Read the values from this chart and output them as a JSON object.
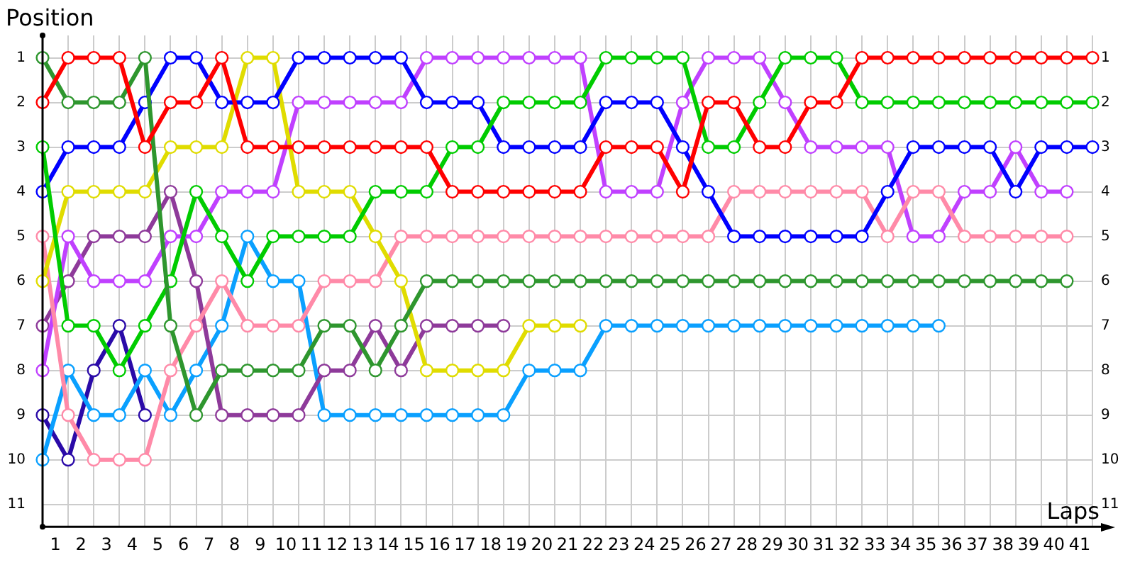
{
  "chart_data": {
    "type": "line",
    "xlabel": "Laps",
    "ylabel": "Position",
    "marker": "circle",
    "grid": true,
    "x": [
      0,
      1,
      2,
      3,
      4,
      5,
      6,
      7,
      8,
      9,
      10,
      11,
      12,
      13,
      14,
      15,
      16,
      17,
      18,
      19,
      20,
      21,
      22,
      23,
      24,
      25,
      26,
      27,
      28,
      29,
      30,
      31,
      32,
      33,
      34,
      35,
      36,
      37,
      38,
      39,
      40,
      41
    ],
    "xlim": [
      0,
      41
    ],
    "xticks": [
      {
        "value": 0,
        "label": null
      },
      {
        "value": 0.5,
        "label": "1"
      },
      {
        "value": 1,
        "label": null
      },
      {
        "value": 1.5,
        "label": "2"
      },
      {
        "value": 2,
        "label": null
      },
      {
        "value": 2.5,
        "label": "3"
      },
      {
        "value": 3,
        "label": null
      },
      {
        "value": 3.5,
        "label": "4"
      },
      {
        "value": 4,
        "label": null
      },
      {
        "value": 4.5,
        "label": "5"
      },
      {
        "value": 5,
        "label": null
      },
      {
        "value": 5.5,
        "label": "6"
      },
      {
        "value": 6,
        "label": null
      },
      {
        "value": 6.5,
        "label": "7"
      },
      {
        "value": 7,
        "label": null
      },
      {
        "value": 7.5,
        "label": "8"
      },
      {
        "value": 8,
        "label": null
      },
      {
        "value": 8.5,
        "label": "9"
      },
      {
        "value": 9,
        "label": null
      },
      {
        "value": 9.5,
        "label": "10"
      },
      {
        "value": 10,
        "label": null
      },
      {
        "value": 10.5,
        "label": "11"
      },
      {
        "value": 11,
        "label": null
      },
      {
        "value": 11.5,
        "label": "12"
      },
      {
        "value": 12,
        "label": null
      },
      {
        "value": 12.5,
        "label": "13"
      },
      {
        "value": 13,
        "label": null
      },
      {
        "value": 13.5,
        "label": "14"
      },
      {
        "value": 14,
        "label": null
      },
      {
        "value": 14.5,
        "label": "15"
      },
      {
        "value": 15,
        "label": null
      },
      {
        "value": 15.5,
        "label": "16"
      },
      {
        "value": 16,
        "label": null
      },
      {
        "value": 16.5,
        "label": "17"
      },
      {
        "value": 17,
        "label": null
      },
      {
        "value": 17.5,
        "label": "18"
      },
      {
        "value": 18,
        "label": null
      },
      {
        "value": 18.5,
        "label": "19"
      },
      {
        "value": 19,
        "label": null
      },
      {
        "value": 19.5,
        "label": "20"
      },
      {
        "value": 20,
        "label": null
      },
      {
        "value": 20.5,
        "label": "21"
      },
      {
        "value": 21,
        "label": null
      },
      {
        "value": 21.5,
        "label": "22"
      },
      {
        "value": 22,
        "label": null
      },
      {
        "value": 22.5,
        "label": "23"
      },
      {
        "value": 23,
        "label": null
      },
      {
        "value": 23.5,
        "label": "24"
      },
      {
        "value": 24,
        "label": null
      },
      {
        "value": 24.5,
        "label": "25"
      },
      {
        "value": 25,
        "label": null
      },
      {
        "value": 25.5,
        "label": "26"
      },
      {
        "value": 26,
        "label": null
      },
      {
        "value": 26.5,
        "label": "27"
      },
      {
        "value": 27,
        "label": null
      },
      {
        "value": 27.5,
        "label": "28"
      },
      {
        "value": 28,
        "label": null
      },
      {
        "value": 28.5,
        "label": "29"
      },
      {
        "value": 29,
        "label": null
      },
      {
        "value": 29.5,
        "label": "30"
      },
      {
        "value": 30,
        "label": null
      },
      {
        "value": 30.5,
        "label": "31"
      },
      {
        "value": 31,
        "label": null
      },
      {
        "value": 31.5,
        "label": "32"
      },
      {
        "value": 32,
        "label": null
      },
      {
        "value": 32.5,
        "label": "33"
      },
      {
        "value": 33,
        "label": null
      },
      {
        "value": 33.5,
        "label": "34"
      },
      {
        "value": 34,
        "label": null
      },
      {
        "value": 34.5,
        "label": "35"
      },
      {
        "value": 35,
        "label": null
      },
      {
        "value": 35.5,
        "label": "36"
      },
      {
        "value": 36,
        "label": null
      },
      {
        "value": 36.5,
        "label": "37"
      },
      {
        "value": 37,
        "label": null
      },
      {
        "value": 37.5,
        "label": "38"
      },
      {
        "value": 38,
        "label": null
      },
      {
        "value": 38.5,
        "label": "39"
      },
      {
        "value": 39,
        "label": null
      },
      {
        "value": 39.5,
        "label": "40"
      },
      {
        "value": 40,
        "label": null
      },
      {
        "value": 40.5,
        "label": "41"
      },
      {
        "value": 41,
        "label": null
      }
    ],
    "ylim": [
      11.5,
      0.5
    ],
    "yticks": [
      1,
      2,
      3,
      4,
      5,
      6,
      7,
      8,
      9,
      10,
      11
    ],
    "y2lim": [
      11.5,
      0.5
    ],
    "y2ticks": [
      1,
      2,
      3,
      4,
      5,
      6,
      7,
      8,
      9,
      10,
      11
    ],
    "series": [
      {
        "color": "#ff0000",
        "values": [
          2,
          1,
          1,
          1,
          3,
          2,
          2,
          1,
          3,
          3,
          3,
          3,
          3,
          3,
          3,
          3,
          4,
          4,
          4,
          4,
          4,
          4,
          3,
          3,
          3,
          4,
          2,
          2,
          3,
          3,
          2,
          2,
          1,
          1,
          1,
          1,
          1,
          1,
          1,
          1,
          1,
          1
        ]
      },
      {
        "color": "#2e962e",
        "values": [
          1,
          2,
          2,
          2,
          1,
          7,
          9,
          8,
          8,
          8,
          8,
          7,
          7,
          8,
          7,
          6,
          6,
          6,
          6,
          6,
          6,
          6,
          6,
          6,
          6,
          6,
          6,
          6,
          6,
          6,
          6,
          6,
          6,
          6,
          6,
          6,
          6,
          6,
          6,
          6,
          6,
          null
        ]
      },
      {
        "color": "#00cc00",
        "values": [
          3,
          7,
          7,
          8,
          7,
          6,
          4,
          5,
          6,
          5,
          5,
          5,
          5,
          4,
          4,
          4,
          3,
          3,
          2,
          2,
          2,
          2,
          1,
          1,
          1,
          1,
          3,
          3,
          2,
          1,
          1,
          1,
          2,
          2,
          2,
          2,
          2,
          2,
          2,
          2,
          2,
          2
        ]
      },
      {
        "color": "#0000ff",
        "values": [
          4,
          3,
          3,
          3,
          2,
          1,
          1,
          2,
          2,
          2,
          1,
          1,
          1,
          1,
          1,
          2,
          2,
          2,
          3,
          3,
          3,
          3,
          2,
          2,
          2,
          3,
          4,
          5,
          5,
          5,
          5,
          5,
          5,
          4,
          3,
          3,
          3,
          3,
          4,
          3,
          3,
          3
        ]
      },
      {
        "color": "#e0dc00",
        "values": [
          6,
          4,
          4,
          4,
          4,
          3,
          3,
          3,
          1,
          1,
          4,
          4,
          4,
          5,
          6,
          8,
          8,
          8,
          8,
          7,
          7,
          7,
          null,
          null,
          null,
          null,
          null,
          null,
          null,
          null,
          null,
          null,
          null,
          null,
          null,
          null,
          null,
          null,
          null,
          null,
          null,
          null
        ]
      },
      {
        "color": "#ff8aa8",
        "values": [
          5,
          9,
          10,
          10,
          10,
          8,
          7,
          6,
          7,
          7,
          7,
          6,
          6,
          6,
          5,
          5,
          5,
          5,
          5,
          5,
          5,
          5,
          5,
          5,
          5,
          5,
          5,
          4,
          4,
          4,
          4,
          4,
          4,
          5,
          4,
          4,
          5,
          5,
          5,
          5,
          5,
          null
        ]
      },
      {
        "color": "#c040ff",
        "values": [
          8,
          5,
          6,
          6,
          6,
          5,
          5,
          4,
          4,
          4,
          2,
          2,
          2,
          2,
          2,
          1,
          1,
          1,
          1,
          1,
          1,
          1,
          4,
          4,
          4,
          2,
          1,
          1,
          1,
          2,
          3,
          3,
          3,
          3,
          5,
          5,
          4,
          4,
          3,
          4,
          4,
          null
        ]
      },
      {
        "color": "#8e3a9a",
        "values": [
          7,
          6,
          5,
          5,
          5,
          4,
          6,
          9,
          9,
          9,
          9,
          8,
          8,
          7,
          8,
          7,
          7,
          7,
          7,
          null,
          null,
          null,
          null,
          null,
          null,
          null,
          null,
          null,
          null,
          null,
          null,
          null,
          null,
          null,
          null,
          null,
          null,
          null,
          null,
          null,
          null,
          null
        ]
      },
      {
        "color": "#0aa0ff",
        "values": [
          10,
          8,
          9,
          9,
          8,
          9,
          8,
          7,
          5,
          6,
          6,
          9,
          9,
          9,
          9,
          9,
          9,
          9,
          9,
          8,
          8,
          8,
          7,
          7,
          7,
          7,
          7,
          7,
          7,
          7,
          7,
          7,
          7,
          7,
          7,
          7,
          null,
          null,
          null,
          null,
          null,
          null
        ]
      },
      {
        "color": "#2a0aa8",
        "values": [
          9,
          10,
          8,
          7,
          9,
          null,
          null,
          null,
          null,
          null,
          null,
          null,
          null,
          null,
          null,
          null,
          null,
          null,
          null,
          null,
          null,
          null,
          null,
          null,
          null,
          null,
          null,
          null,
          null,
          null,
          null,
          null,
          null,
          null,
          null,
          null,
          null,
          null,
          null,
          null,
          null,
          null
        ]
      }
    ]
  }
}
